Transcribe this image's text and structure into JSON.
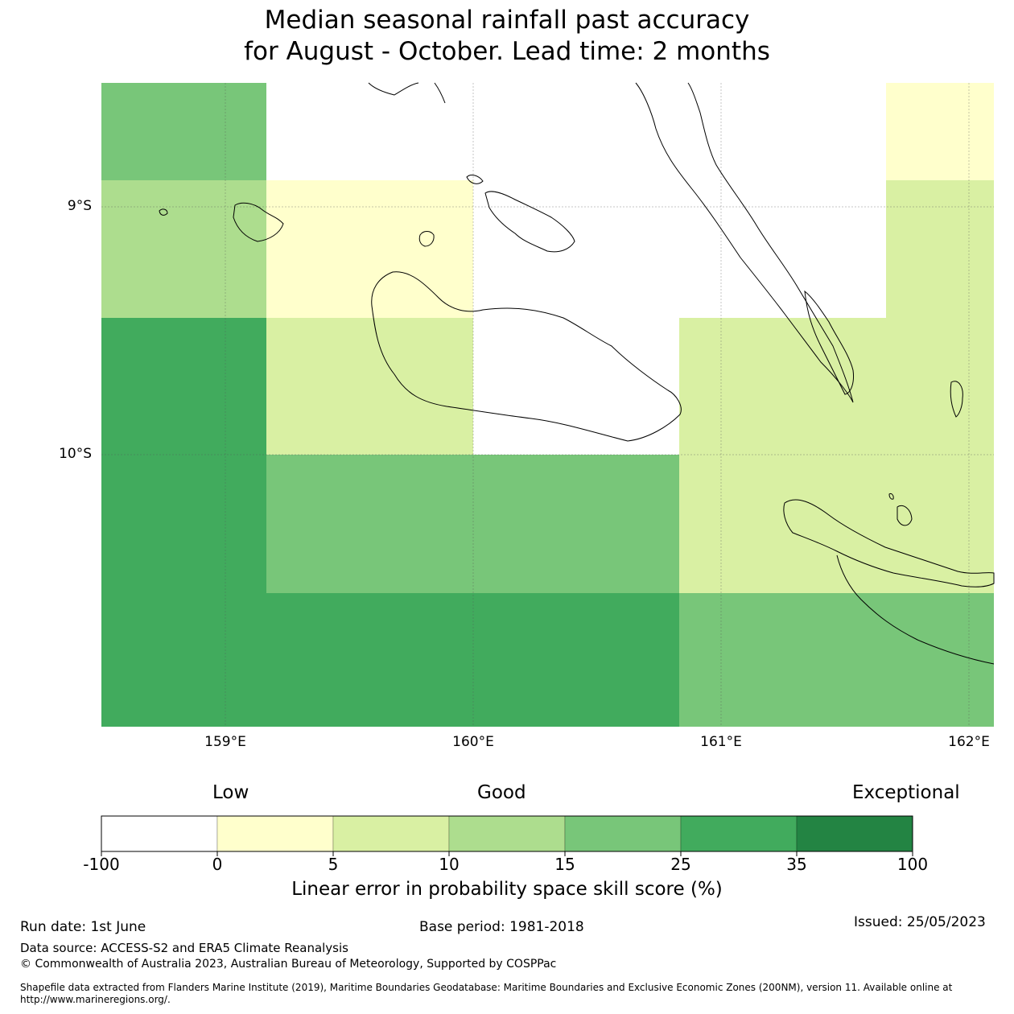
{
  "title_line1": "Median seasonal rainfall past accuracy",
  "title_line2": "for August - October. Lead time: 2 months",
  "map": {
    "lon_ticks": [
      "159°E",
      "160°E",
      "161°E",
      "162°E"
    ],
    "lat_ticks": [
      "9°S",
      "10°S"
    ],
    "grid_cells": [
      {
        "lon_range": [
          "158.5",
          "159.17"
        ],
        "lat_range": [
          "8.6",
          "9.0"
        ],
        "category": "15-25",
        "color": "#78c679"
      },
      {
        "lon_range": [
          "158.5",
          "159.17"
        ],
        "lat_range": [
          "9.0",
          "9.45"
        ],
        "category": "10-15",
        "color": "#addd8e"
      },
      {
        "lon_range": [
          "158.5",
          "159.17"
        ],
        "lat_range": [
          "9.45",
          "11.1"
        ],
        "category": "25-35",
        "color": "#41ab5d"
      },
      {
        "lon_range": [
          "159.17",
          "160.0"
        ],
        "lat_range": [
          "9.0",
          "9.45"
        ],
        "category": "0-5",
        "color": "#ffffcc"
      },
      {
        "lon_range": [
          "159.17",
          "160.0"
        ],
        "lat_range": [
          "9.45",
          "10.0"
        ],
        "category": "5-10",
        "color": "#d9f0a3"
      },
      {
        "lon_range": [
          "159.17",
          "160.83"
        ],
        "lat_range": [
          "10.0",
          "10.55"
        ],
        "category": "15-25",
        "color": "#78c679"
      },
      {
        "lon_range": [
          "159.17",
          "160.83"
        ],
        "lat_range": [
          "10.55",
          "11.1"
        ],
        "category": "25-35",
        "color": "#41ab5d"
      },
      {
        "lon_range": [
          "160.83",
          "161.67"
        ],
        "lat_range": [
          "9.45",
          "10.55"
        ],
        "category": "5-10",
        "color": "#d9f0a3"
      },
      {
        "lon_range": [
          "161.67",
          "162.1"
        ],
        "lat_range": [
          "8.6",
          "9.0"
        ],
        "category": "0-5",
        "color": "#ffffcc"
      },
      {
        "lon_range": [
          "161.67",
          "162.1"
        ],
        "lat_range": [
          "9.0",
          "10.55"
        ],
        "category": "5-10",
        "color": "#d9f0a3"
      },
      {
        "lon_range": [
          "160.83",
          "162.1"
        ],
        "lat_range": [
          "10.55",
          "11.1"
        ],
        "category": "15-25",
        "color": "#78c679"
      }
    ]
  },
  "colorbar": {
    "head_low": "Low",
    "head_good": "Good",
    "head_exceptional": "Exceptional",
    "ticks": [
      "-100",
      "0",
      "5",
      "10",
      "15",
      "25",
      "35",
      "100"
    ],
    "colors": [
      "#ffffff",
      "#ffffcc",
      "#d9f0a3",
      "#addd8e",
      "#78c679",
      "#41ab5d",
      "#238443"
    ],
    "title": "Linear error in probability space skill score (%)"
  },
  "footer": {
    "run_date": "Run date: 1st June",
    "base_period": "Base period: 1981-2018",
    "issued": "Issued: 25/05/2023",
    "data_source": "Data source: ACCESS-S2 and ERA5 Climate Reanalysis",
    "copyright": "© Commonwealth of Australia 2023, Australian Bureau of Meteorology, Supported by COSPPac",
    "shapefile_1": "Shapefile data extracted from Flanders Marine Institute (2019), Maritime Boundaries Geodatabase: Maritime Boundaries and Exclusive Economic Zones (200NM), version 11. Available online at",
    "shapefile_2": "http://www.marineregions.org/."
  }
}
